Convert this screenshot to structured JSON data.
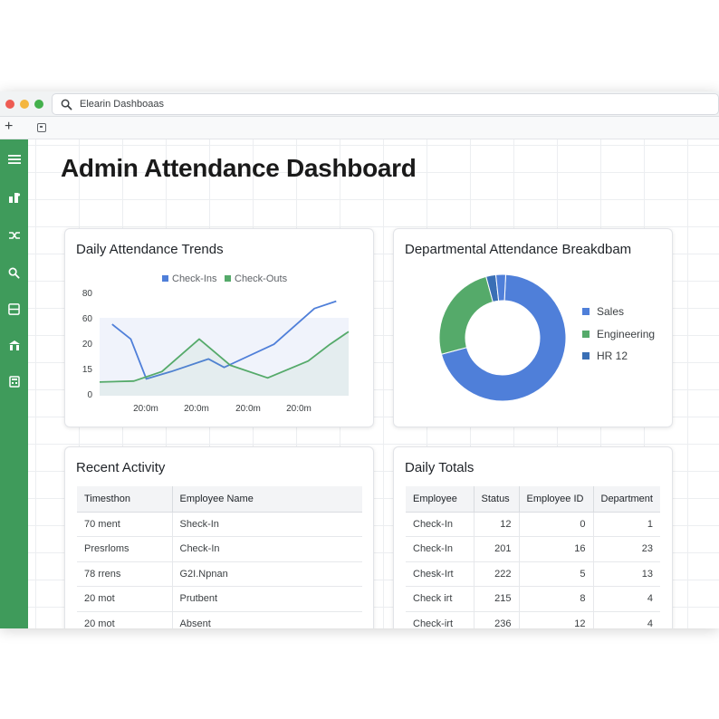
{
  "browser": {
    "address": "Elearin Dashboaas",
    "new_tab_symbol": "+"
  },
  "sidebar": {
    "items": [
      {
        "icon": "menu-icon"
      },
      {
        "icon": "users-icon"
      },
      {
        "icon": "shuffle-icon"
      },
      {
        "icon": "search-icon"
      },
      {
        "icon": "list-icon"
      },
      {
        "icon": "building-icon"
      },
      {
        "icon": "calculator-icon"
      }
    ],
    "color": "#3f9b5b"
  },
  "page": {
    "title": "Admin Attendance Dashboard"
  },
  "trends_card": {
    "title": "Daily Attendance Trends",
    "legend": [
      {
        "label": "Check-Ins",
        "color": "#4f7fd9"
      },
      {
        "label": "Check-Outs",
        "color": "#55aa6a"
      }
    ]
  },
  "chart_data": {
    "type": "line",
    "title": "Daily Attendance Trends",
    "y_ticks": [
      "80",
      "60",
      "20",
      "15",
      "0"
    ],
    "x_ticks": [
      "20:0m",
      "20:0m",
      "20:0m",
      "20:0m"
    ],
    "series": [
      {
        "name": "Check-Ins",
        "color": "#4f7fd9",
        "points": [
          [
            0.4,
            68
          ],
          [
            1.0,
            54
          ],
          [
            1.5,
            16
          ],
          [
            2.3,
            23
          ],
          [
            3.5,
            35
          ],
          [
            4.0,
            27
          ],
          [
            5.6,
            49
          ],
          [
            6.9,
            83
          ],
          [
            7.6,
            90
          ]
        ]
      },
      {
        "name": "Check-Outs",
        "color": "#55aa6a",
        "points": [
          [
            0.0,
            13
          ],
          [
            1.1,
            14
          ],
          [
            2.0,
            23
          ],
          [
            3.2,
            54
          ],
          [
            4.2,
            29
          ],
          [
            5.4,
            17
          ],
          [
            6.7,
            33
          ],
          [
            7.4,
            49
          ],
          [
            8.0,
            61
          ]
        ]
      }
    ],
    "x_range": [
      0,
      8
    ],
    "y_range": [
      0,
      100
    ]
  },
  "department_card": {
    "title": "Departmental Attendance Breakdbam",
    "slices": [
      {
        "label": "Sales",
        "value": 70,
        "color": "#4f7fd9"
      },
      {
        "label": "Engineering",
        "value": 25,
        "color": "#55aa6a"
      },
      {
        "label": "HR 12",
        "value": 2.5,
        "color": "#3a6fb5"
      },
      {
        "label": "",
        "value": 2.5,
        "color": "#4f7fd9"
      }
    ]
  },
  "recent_activity": {
    "title": "Recent Activity",
    "headers": [
      "Timesthon",
      "Employee Name"
    ],
    "rows": [
      [
        "70 ment",
        "Sheck-In"
      ],
      [
        "Presrloms",
        "Check-In"
      ],
      [
        "78 rrens",
        "G2I.Npnan"
      ],
      [
        "20 mot",
        "Prutbent"
      ],
      [
        "20 mot",
        "Absent"
      ]
    ]
  },
  "daily_totals": {
    "title": "Daily Totals",
    "headers": [
      "Employee",
      "Status",
      "Employee ID",
      "Department"
    ],
    "rows": [
      [
        "Check-In",
        "12",
        "0",
        "1"
      ],
      [
        "Check-In",
        "201",
        "16",
        "23"
      ],
      [
        "Chesk-Irt",
        "222",
        "5",
        "13"
      ],
      [
        "Check irt",
        "215",
        "8",
        "4"
      ],
      [
        "Check-irt",
        "236",
        "12",
        "4"
      ]
    ]
  }
}
